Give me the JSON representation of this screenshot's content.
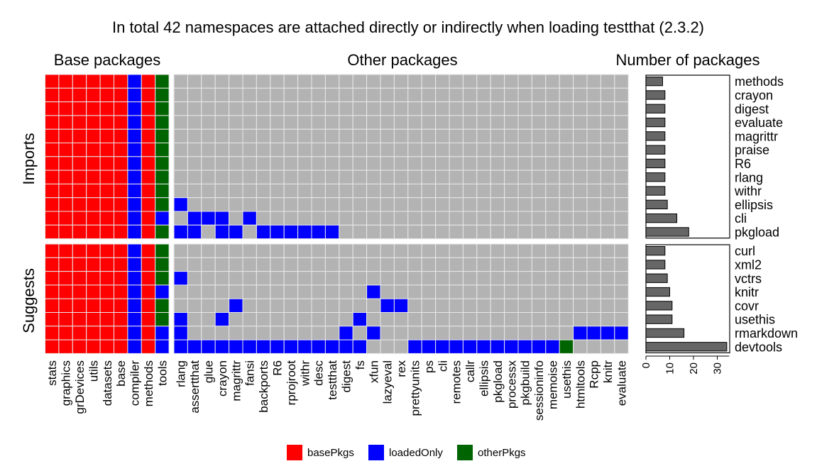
{
  "chart_data": {
    "type": "heatmap",
    "title": "In total 42 namespaces are attached directly or indirectly when loading testthat (2.3.2)",
    "panels": {
      "base_title": "Base packages",
      "other_title": "Other packages",
      "count_title": "Number of packages"
    },
    "row_groups": [
      "Imports",
      "Suggests"
    ],
    "base_packages": [
      "stats",
      "graphics",
      "grDevices",
      "utils",
      "datasets",
      "base",
      "compiler",
      "methods",
      "tools"
    ],
    "other_packages": [
      "rlang",
      "assertthat",
      "glue",
      "crayon",
      "magrittr",
      "fansi",
      "backports",
      "R6",
      "rprojroot",
      "withr",
      "desc",
      "testthat",
      "digest",
      "fs",
      "xfun",
      "lazyeval",
      "rex",
      "prettyunits",
      "ps",
      "cli",
      "remotes",
      "callr",
      "ellipsis",
      "pkgload",
      "processx",
      "pkgbuild",
      "sessioninfo",
      "memoise",
      "usethis",
      "htmltools",
      "Rcpp",
      "knitr",
      "evaluate"
    ],
    "rows": [
      {
        "group": "Imports",
        "name": "methods",
        "count": 7,
        "base": "RRRRRRBRG",
        "other": "................................."
      },
      {
        "group": "Imports",
        "name": "crayon",
        "count": 8,
        "base": "RRRRRRBRG",
        "other": "................................."
      },
      {
        "group": "Imports",
        "name": "digest",
        "count": 8,
        "base": "RRRRRRBRG",
        "other": "................................."
      },
      {
        "group": "Imports",
        "name": "evaluate",
        "count": 8,
        "base": "RRRRRRBRG",
        "other": "................................."
      },
      {
        "group": "Imports",
        "name": "magrittr",
        "count": 8,
        "base": "RRRRRRBRG",
        "other": "................................."
      },
      {
        "group": "Imports",
        "name": "praise",
        "count": 8,
        "base": "RRRRRRBRG",
        "other": "................................."
      },
      {
        "group": "Imports",
        "name": "R6",
        "count": 8,
        "base": "RRRRRRBRG",
        "other": "................................."
      },
      {
        "group": "Imports",
        "name": "rlang",
        "count": 8,
        "base": "RRRRRRBRG",
        "other": "................................."
      },
      {
        "group": "Imports",
        "name": "withr",
        "count": 8,
        "base": "RRRRRRBRG",
        "other": "................................."
      },
      {
        "group": "Imports",
        "name": "ellipsis",
        "count": 9,
        "base": "RRRRRRBRG",
        "other": "B................................"
      },
      {
        "group": "Imports",
        "name": "cli",
        "count": 13,
        "base": "RRRRRRBRB",
        "other": ".BBB.B..........................."
      },
      {
        "group": "Imports",
        "name": "pkgload",
        "count": 18,
        "base": "RRRRRRBRG",
        "other": "BB.BB.BBBBBB....................."
      },
      {
        "group": "Suggests",
        "name": "curl",
        "count": 8,
        "base": "RRRRRRBRG",
        "other": "................................."
      },
      {
        "group": "Suggests",
        "name": "xml2",
        "count": 8,
        "base": "RRRRRRBRG",
        "other": "................................."
      },
      {
        "group": "Suggests",
        "name": "vctrs",
        "count": 9,
        "base": "RRRRRRBRG",
        "other": "B................................"
      },
      {
        "group": "Suggests",
        "name": "knitr",
        "count": 10,
        "base": "RRRRRRBRB",
        "other": "..............B.................."
      },
      {
        "group": "Suggests",
        "name": "covr",
        "count": 11,
        "base": "RRRRRRBRG",
        "other": "....B..........BB................"
      },
      {
        "group": "Suggests",
        "name": "usethis",
        "count": 11,
        "base": "RRRRRRBRG",
        "other": "B..B.........B..................."
      },
      {
        "group": "Suggests",
        "name": "rmarkdown",
        "count": 16,
        "base": "RRRRRRBRB",
        "other": "B...........B.B..............BBBB"
      },
      {
        "group": "Suggests",
        "name": "devtools",
        "count": 34,
        "base": "RRRRRRBRB",
        "other": "BBBBBBBBBBBBBB...BBBBBBBBBBBG...."
      }
    ],
    "xlim": [
      0,
      35
    ],
    "xticks": [
      "0",
      "10",
      "20",
      "30"
    ],
    "legend": [
      {
        "key": "R",
        "label": "basePkgs",
        "color": "#ff0000"
      },
      {
        "key": "B",
        "label": "loadedOnly",
        "color": "#0000ff"
      },
      {
        "key": "G",
        "label": "otherPkgs",
        "color": "#006400"
      }
    ],
    "empty_color": "#b3b3b3",
    "bar_color": "#666666",
    "legend_position": "bottom"
  }
}
